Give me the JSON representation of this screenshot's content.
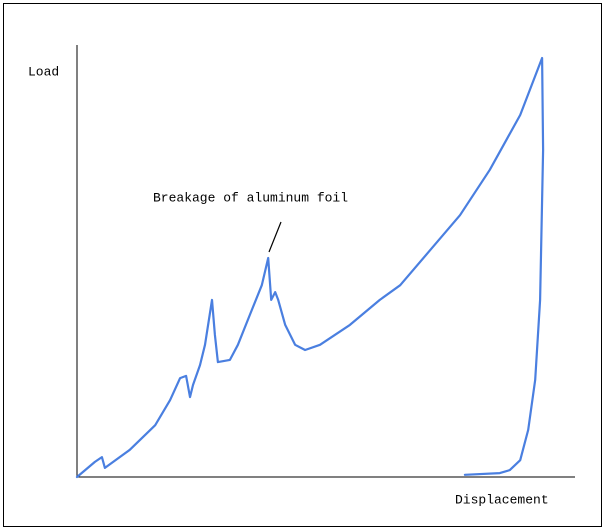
{
  "chart_data": {
    "type": "line",
    "y_label": "Load",
    "x_label": "Displacement",
    "annotation": "Breakage of aluminum foil",
    "color": "#4a7fe0",
    "xlim": [
      0,
      100
    ],
    "ylim": [
      0,
      100
    ],
    "x": [
      0,
      3.6,
      5.0,
      5.6,
      10.6,
      15.7,
      18.7,
      20.7,
      21.9,
      22.7,
      23.3,
      24.7,
      25.7,
      27.1,
      27.7,
      28.3,
      30.7,
      32.3,
      34.7,
      37.1,
      38.4,
      39.0,
      39.8,
      40.4,
      41.8,
      43.8,
      45.8,
      48.8,
      54.8,
      60.8,
      64.9,
      70.9,
      76.9,
      82.9,
      89.0,
      93.4,
      93.6,
      93.0,
      92.0,
      90.6,
      89.0,
      86.9,
      84.9,
      77.9
    ],
    "values": [
      0,
      3.5,
      4.6,
      2.1,
      6.3,
      12.0,
      17.8,
      22.9,
      23.4,
      18.5,
      21.3,
      25.9,
      30.6,
      41.0,
      32.9,
      26.6,
      27.1,
      30.6,
      37.5,
      44.4,
      50.7,
      41.0,
      42.8,
      41.0,
      35.2,
      30.6,
      29.4,
      30.6,
      35.2,
      41.0,
      44.4,
      52.5,
      60.6,
      71.1,
      83.8,
      97.0,
      75.7,
      41.0,
      22.5,
      10.9,
      3.9,
      1.6,
      0.9,
      0.5
    ]
  }
}
